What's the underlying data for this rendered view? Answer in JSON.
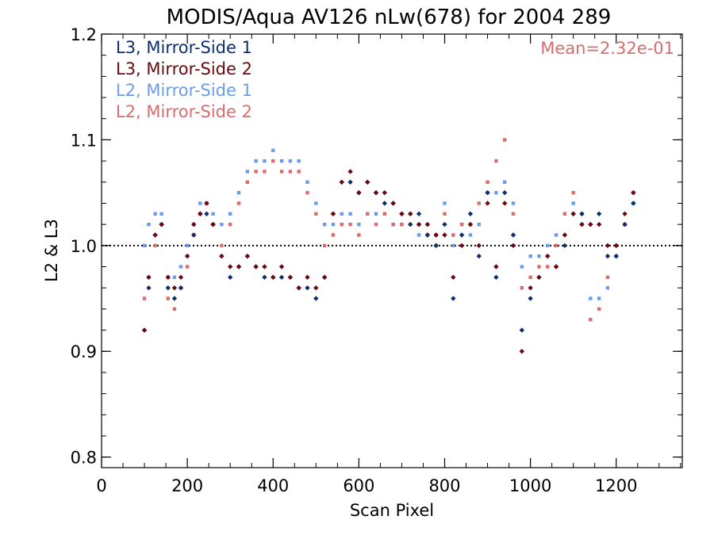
{
  "chart_data": {
    "type": "scatter",
    "title": "MODIS/Aqua AV126 nLw(678) for 2004 289",
    "xlabel": "Scan Pixel",
    "ylabel": "L2 & L3",
    "xlim": [
      0,
      1354
    ],
    "ylim": [
      0.79,
      1.2
    ],
    "x_ticks": [
      0,
      200,
      400,
      600,
      800,
      1000,
      1200
    ],
    "x_tick_labels": [
      "0",
      "200",
      "400",
      "600",
      "800",
      "1000",
      "1200"
    ],
    "y_ticks": [
      0.8,
      0.9,
      1.0,
      1.1,
      1.2
    ],
    "y_tick_labels": [
      "0.8",
      "0.9",
      "1.0",
      "1.1",
      "1.2"
    ],
    "reference_line": 1.0,
    "legend_position": "top-left",
    "annotation": "Mean=2.32e-01",
    "annotation_color": "#d96c6c",
    "series": [
      {
        "name": "L3, Mirror-Side 1",
        "color": "#0d2f6e",
        "marker": "diamond",
        "x": [
          100,
          110,
          125,
          140,
          155,
          170,
          185,
          200,
          215,
          230,
          245,
          260,
          280,
          300,
          320,
          340,
          360,
          380,
          400,
          420,
          440,
          460,
          480,
          500,
          520,
          540,
          560,
          580,
          600,
          620,
          640,
          660,
          680,
          700,
          720,
          740,
          760,
          780,
          800,
          820,
          840,
          860,
          880,
          900,
          920,
          940,
          960,
          980,
          1000,
          1020,
          1040,
          1060,
          1080,
          1100,
          1120,
          1140,
          1160,
          1180,
          1200,
          1220,
          1240
        ],
        "y": [
          0.92,
          0.96,
          1.01,
          1.02,
          0.96,
          0.95,
          0.96,
          0.99,
          1.01,
          1.03,
          1.03,
          1.02,
          0.99,
          0.97,
          0.98,
          0.99,
          0.98,
          0.97,
          0.97,
          0.97,
          0.97,
          0.96,
          0.96,
          0.95,
          0.97,
          1.03,
          1.06,
          1.06,
          1.05,
          1.06,
          1.05,
          1.04,
          1.04,
          1.03,
          1.02,
          1.03,
          1.01,
          1.0,
          1.02,
          0.95,
          1.01,
          1.03,
          0.99,
          1.05,
          0.97,
          1.05,
          1.01,
          0.92,
          0.95,
          0.97,
          0.99,
          0.98,
          1.0,
          1.03,
          1.03,
          1.02,
          1.03,
          0.99,
          0.99,
          1.02,
          1.04
        ]
      },
      {
        "name": "L3, Mirror-Side 2",
        "color": "#6b0a0e",
        "marker": "diamond",
        "x": [
          100,
          110,
          125,
          140,
          155,
          170,
          185,
          200,
          215,
          230,
          245,
          260,
          280,
          300,
          320,
          340,
          360,
          380,
          400,
          420,
          440,
          460,
          480,
          500,
          520,
          540,
          560,
          580,
          600,
          620,
          640,
          660,
          680,
          700,
          720,
          740,
          760,
          780,
          800,
          820,
          840,
          860,
          880,
          900,
          920,
          940,
          960,
          980,
          1000,
          1020,
          1040,
          1060,
          1080,
          1100,
          1120,
          1140,
          1160,
          1180,
          1200,
          1220,
          1240
        ],
        "y": [
          0.92,
          0.97,
          1.01,
          1.02,
          0.97,
          0.96,
          0.97,
          0.99,
          1.02,
          1.03,
          1.04,
          1.02,
          0.99,
          0.98,
          0.98,
          0.99,
          0.98,
          0.98,
          0.97,
          0.98,
          0.97,
          0.96,
          0.97,
          0.96,
          0.97,
          1.03,
          1.06,
          1.07,
          1.05,
          1.06,
          1.05,
          1.05,
          1.04,
          1.03,
          1.03,
          1.02,
          1.02,
          1.01,
          1.01,
          0.97,
          1.0,
          1.02,
          1.0,
          1.04,
          0.98,
          1.04,
          1.0,
          0.9,
          0.96,
          0.97,
          0.99,
          0.98,
          1.01,
          1.03,
          1.02,
          1.02,
          1.02,
          1.0,
          1.0,
          1.03,
          1.05
        ]
      },
      {
        "name": "L2, Mirror-Side 1",
        "color": "#6b9cea",
        "marker": "square",
        "x": [
          100,
          110,
          125,
          140,
          155,
          170,
          185,
          200,
          215,
          230,
          245,
          260,
          280,
          300,
          320,
          340,
          360,
          380,
          400,
          420,
          440,
          460,
          480,
          500,
          520,
          540,
          560,
          580,
          600,
          620,
          640,
          660,
          680,
          700,
          720,
          740,
          760,
          780,
          800,
          820,
          840,
          860,
          880,
          900,
          920,
          940,
          960,
          980,
          1000,
          1020,
          1040,
          1060,
          1080,
          1100,
          1120,
          1140,
          1160,
          1180,
          1200,
          1220,
          1240
        ],
        "y": [
          1.0,
          1.02,
          1.03,
          1.03,
          0.97,
          0.97,
          0.98,
          1.0,
          1.02,
          1.04,
          1.04,
          1.03,
          1.02,
          1.03,
          1.05,
          1.07,
          1.08,
          1.08,
          1.09,
          1.08,
          1.08,
          1.08,
          1.06,
          1.04,
          1.02,
          1.02,
          1.03,
          1.03,
          1.02,
          1.03,
          1.03,
          1.03,
          1.02,
          1.02,
          1.03,
          1.01,
          1.02,
          1.0,
          1.04,
          1.0,
          1.02,
          1.01,
          1.02,
          1.05,
          1.05,
          1.06,
          1.04,
          0.98,
          0.99,
          0.99,
          1.0,
          1.01,
          1.03,
          1.04,
          1.03,
          0.95,
          0.95,
          0.96,
          0.99,
          1.02,
          1.04
        ]
      },
      {
        "name": "L2, Mirror-Side 2",
        "color": "#d96c6c",
        "marker": "square",
        "x": [
          100,
          110,
          125,
          140,
          155,
          170,
          185,
          200,
          215,
          230,
          245,
          260,
          280,
          300,
          320,
          340,
          360,
          380,
          400,
          420,
          440,
          460,
          480,
          500,
          520,
          540,
          560,
          580,
          600,
          620,
          640,
          660,
          680,
          700,
          720,
          740,
          760,
          780,
          800,
          820,
          840,
          860,
          880,
          900,
          920,
          940,
          960,
          980,
          1000,
          1020,
          1040,
          1060,
          1080,
          1100,
          1120,
          1140,
          1160,
          1180,
          1200,
          1220,
          1240
        ],
        "y": [
          0.95,
          0.97,
          1.0,
          1.02,
          0.95,
          0.94,
          0.96,
          0.98,
          1.01,
          1.03,
          1.04,
          1.02,
          1.0,
          1.02,
          1.04,
          1.06,
          1.07,
          1.07,
          1.08,
          1.07,
          1.07,
          1.07,
          1.05,
          1.03,
          1.0,
          1.01,
          1.02,
          1.02,
          1.01,
          1.03,
          1.02,
          1.03,
          1.02,
          1.02,
          1.02,
          1.02,
          1.01,
          1.01,
          1.03,
          1.01,
          1.02,
          1.02,
          1.04,
          1.06,
          1.08,
          1.1,
          1.03,
          0.96,
          0.97,
          0.98,
          0.98,
          1.0,
          1.03,
          1.05,
          1.02,
          0.93,
          0.94,
          0.97,
          1.0,
          1.02,
          1.05
        ]
      }
    ]
  }
}
